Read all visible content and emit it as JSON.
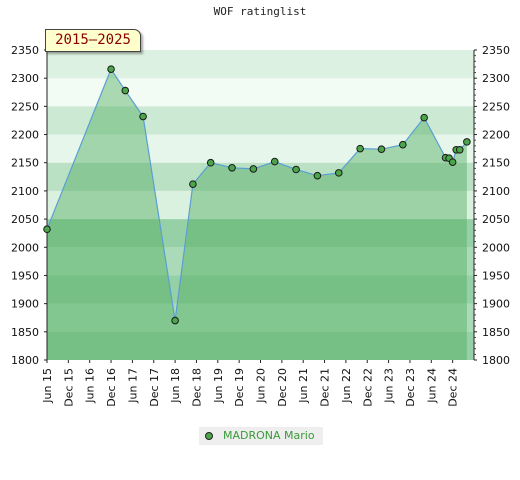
{
  "chart_data": {
    "type": "area",
    "title": "WOF ratinglist",
    "period": "2015–2025",
    "ylim": [
      1800,
      2350
    ],
    "yticks": [
      1800,
      1850,
      1900,
      1950,
      2000,
      2050,
      2100,
      2150,
      2200,
      2250,
      2300,
      2350
    ],
    "xlim": [
      "2015-06",
      "2025-06"
    ],
    "xticks": [
      "Jun 15",
      "Dec 15",
      "Jun 16",
      "Dec 16",
      "Jun 17",
      "Dec 17",
      "Jun 18",
      "Dec 18",
      "Jun 19",
      "Dec 19",
      "Jun 20",
      "Dec 20",
      "Jun 21",
      "Dec 21",
      "Jun 22",
      "Dec 22",
      "Jun 23",
      "Dec 23",
      "Jun 24",
      "Dec 24"
    ],
    "xtick_dates": [
      "2015-06",
      "2015-12",
      "2016-06",
      "2016-12",
      "2017-06",
      "2017-12",
      "2018-06",
      "2018-12",
      "2019-06",
      "2019-12",
      "2020-06",
      "2020-12",
      "2021-06",
      "2021-12",
      "2022-06",
      "2022-12",
      "2023-06",
      "2023-12",
      "2024-06",
      "2024-12"
    ],
    "series": [
      {
        "name": "MADRONA Mario",
        "color": "#4ba64b",
        "x": [
          "2015-06",
          "2016-12",
          "2017-04",
          "2017-09",
          "2018-06",
          "2018-11",
          "2019-04",
          "2019-10",
          "2020-04",
          "2020-10",
          "2021-04",
          "2021-10",
          "2022-04",
          "2022-10",
          "2023-04",
          "2023-10",
          "2024-04",
          "2024-10",
          "2024-11",
          "2024-12",
          "2025-01",
          "2025-02",
          "2025-04"
        ],
        "values": [
          2032,
          2316,
          2278,
          2232,
          1870,
          2112,
          2150,
          2141,
          2139,
          2152,
          2138,
          2127,
          2132,
          2175,
          2174,
          2182,
          2230,
          2159,
          2158,
          2151,
          2173,
          2173,
          2187
        ]
      }
    ]
  },
  "legend": {
    "label": "MADRONA Mario"
  }
}
